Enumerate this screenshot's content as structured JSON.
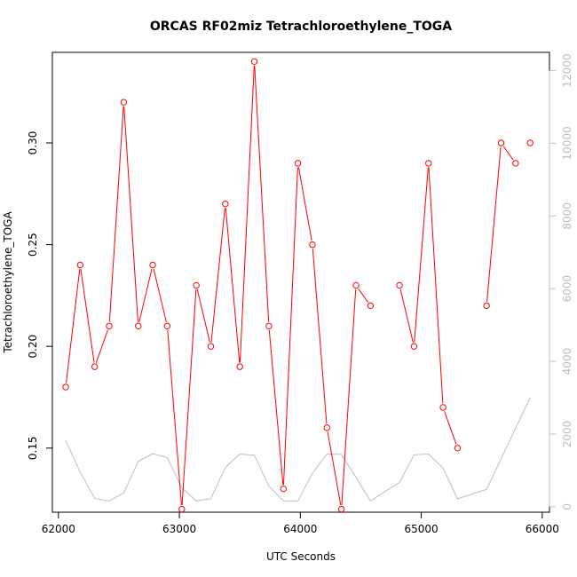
{
  "chart_data": {
    "type": "line",
    "title": "ORCAS RF02miz Tetrachloroethylene_TOGA",
    "xlabel": "UTC Seconds",
    "ylabel": "Tetrachloroethylene_TOGA",
    "xlim": [
      61950,
      66060
    ],
    "ylim": [
      0.1185,
      0.3445
    ],
    "y2lim": [
      -150,
      12500
    ],
    "x_ticks": [
      62000,
      63000,
      64000,
      65000,
      66000
    ],
    "y_ticks": [
      0.15,
      0.2,
      0.25,
      0.3
    ],
    "y2_ticks": [
      0,
      2000,
      4000,
      6000,
      8000,
      10000,
      12000
    ],
    "series": [
      {
        "axis": "left",
        "color": "#ff0000",
        "marker": "open-circle",
        "segments": [
          [
            [
              62060,
              0.18
            ],
            [
              62180,
              0.24
            ],
            [
              62300,
              0.19
            ],
            [
              62420,
              0.21
            ],
            [
              62540,
              0.32
            ],
            [
              62660,
              0.21
            ],
            [
              62780,
              0.24
            ],
            [
              62900,
              0.21
            ],
            [
              63020,
              0.12
            ],
            [
              63140,
              0.23
            ],
            [
              63260,
              0.2
            ],
            [
              63380,
              0.27
            ],
            [
              63500,
              0.19
            ],
            [
              63620,
              0.34
            ],
            [
              63740,
              0.21
            ],
            [
              63860,
              0.13
            ],
            [
              63980,
              0.29
            ],
            [
              64100,
              0.25
            ],
            [
              64220,
              0.16
            ],
            [
              64340,
              0.12
            ],
            [
              64460,
              0.23
            ],
            [
              64580,
              0.22
            ]
          ],
          [
            [
              64820,
              0.23
            ],
            [
              64940,
              0.2
            ],
            [
              65060,
              0.29
            ],
            [
              65180,
              0.17
            ],
            [
              65300,
              0.15
            ]
          ],
          [
            [
              65540,
              0.22
            ],
            [
              65660,
              0.3
            ],
            [
              65780,
              0.29
            ]
          ],
          [
            [
              65900,
              0.3
            ]
          ]
        ],
        "isolated_points": [
          [
            65780,
            0.29
          ],
          [
            65900,
            0.3
          ]
        ]
      },
      {
        "axis": "right",
        "color": "#bebebe",
        "marker": "none",
        "points": [
          [
            62060,
            1820
          ],
          [
            62180,
            950
          ],
          [
            62300,
            230
          ],
          [
            62420,
            160
          ],
          [
            62540,
            380
          ],
          [
            62660,
            1250
          ],
          [
            62780,
            1460
          ],
          [
            62900,
            1350
          ],
          [
            63020,
            520
          ],
          [
            63140,
            160
          ],
          [
            63260,
            220
          ],
          [
            63380,
            1080
          ],
          [
            63500,
            1450
          ],
          [
            63620,
            1420
          ],
          [
            63740,
            570
          ],
          [
            63860,
            160
          ],
          [
            63980,
            160
          ],
          [
            64100,
            920
          ],
          [
            64220,
            1450
          ],
          [
            64340,
            1440
          ],
          [
            64460,
            810
          ],
          [
            64580,
            160
          ],
          [
            64820,
            670
          ],
          [
            64940,
            1430
          ],
          [
            65060,
            1450
          ],
          [
            65180,
            1060
          ],
          [
            65300,
            220
          ],
          [
            65540,
            480
          ],
          [
            65900,
            3000
          ]
        ]
      }
    ],
    "grid": false,
    "legend": "none"
  }
}
